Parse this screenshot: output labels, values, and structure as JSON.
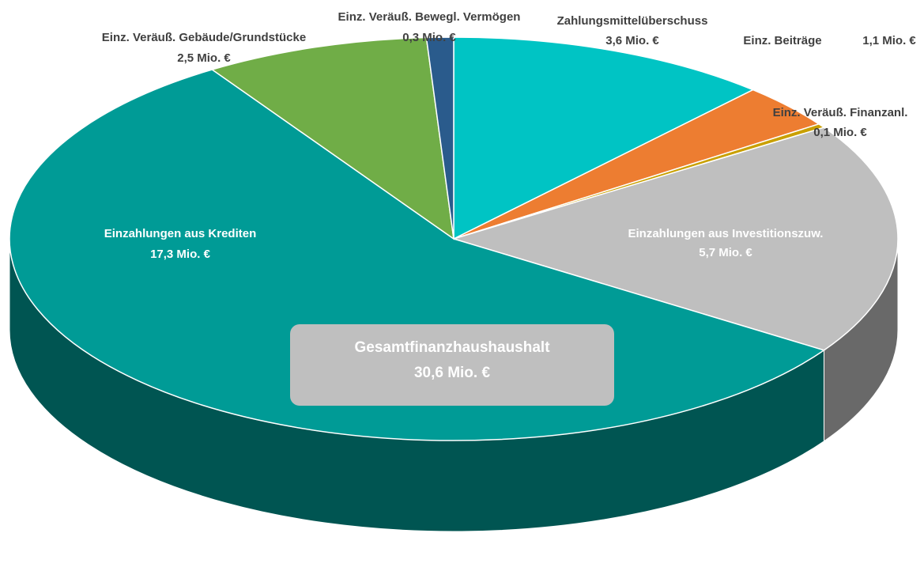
{
  "chart_data": {
    "type": "pie",
    "style": "3d",
    "categories": [
      "Zahlungsmittelüberschuss",
      "Einz. Beiträge",
      "Einz. Veräuß. Finanzanl.",
      "Einzahlungen aus Investitionszuw.",
      "Einzahlungen aus Krediten",
      "Einz. Veräuß. Gebäude/Grundstücke",
      "Einz. Veräuß. Bewegl. Vermögen"
    ],
    "values": [
      3.6,
      1.1,
      0.1,
      5.7,
      17.3,
      2.5,
      0.3
    ],
    "value_labels": [
      "3,6 Mio. €",
      "1,1 Mio. €",
      "0,1 Mio. €",
      "5,7 Mio. €",
      "17,3 Mio. €",
      "2,5 Mio. €",
      "0,3 Mio. €"
    ],
    "colors": [
      "#00c4c4",
      "#ed7d31",
      "#c9a000",
      "#bfbfbf",
      "#009b96",
      "#70ad47",
      "#2a5b8c"
    ],
    "total": {
      "label": "Gesamtfinanzhaushaushalt",
      "value": 30.6,
      "value_label": "30,6 Mio. €"
    }
  }
}
